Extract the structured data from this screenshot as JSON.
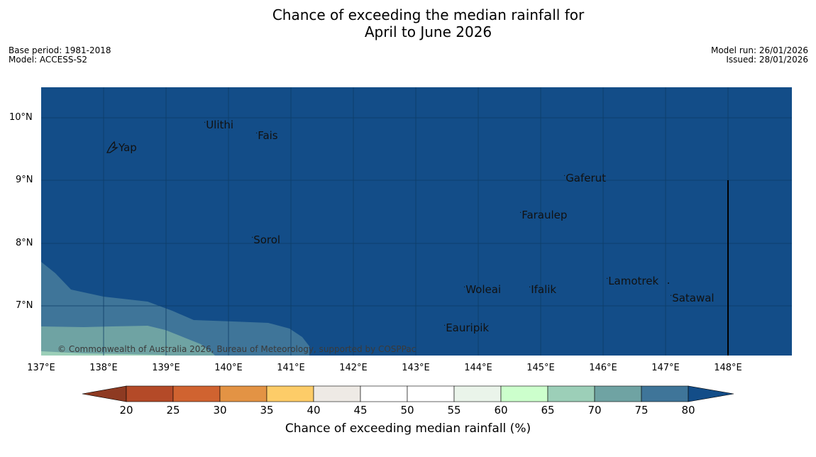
{
  "header": {
    "title_line1": "Chance of exceeding the median rainfall for",
    "title_line2": "April to June 2026",
    "base_period": "Base period: 1981-2018",
    "model": "Model: ACCESS-S2",
    "model_run": "Model run: 26/01/2026",
    "issued": "Issued: 28/01/2026"
  },
  "map": {
    "latitude_labels": [
      "10°N",
      "9°N",
      "8°N",
      "7°N"
    ],
    "longitude_labels": [
      "137°E",
      "138°E",
      "139°E",
      "140°E",
      "141°E",
      "142°E",
      "143°E",
      "144°E",
      "145°E",
      "146°E",
      "147°E",
      "148°E"
    ],
    "places": [
      "Ulithi",
      "Fais",
      "Yap",
      "Gaferut",
      "Faraulep",
      "Sorol",
      "Lamotrek",
      "Woleai",
      "Ifalik",
      "Satawal",
      "Eauripik"
    ],
    "copyright": "© Commonwealth of Australia 2026, Bureau of Meteorology, supported by COSPPac",
    "colors": {
      "above_80": "#134d88",
      "c75_80": "#3f7599",
      "c70_75": "#6fa3a3",
      "c65_70": "#9ccfb8"
    }
  },
  "colorbar": {
    "label": "Chance of exceeding median rainfall (%)",
    "ticks": [
      "20",
      "25",
      "30",
      "35",
      "40",
      "45",
      "50",
      "55",
      "60",
      "65",
      "70",
      "75",
      "80"
    ],
    "colors": {
      "below_20": "#8e3a22",
      "c20_25": "#b44a28",
      "c25_30": "#d06330",
      "c30_35": "#e39344",
      "c35_40": "#fdcc68",
      "c40_45": "#eeeae5",
      "c45_50": "#ffffff",
      "c50_55": "#ffffff",
      "c55_60": "#eaf4ea",
      "c60_65": "#ccffcc",
      "c65_70": "#9ccfb8",
      "c70_75": "#6fa3a3",
      "c75_80": "#3f7599",
      "above_80": "#134d88"
    }
  }
}
